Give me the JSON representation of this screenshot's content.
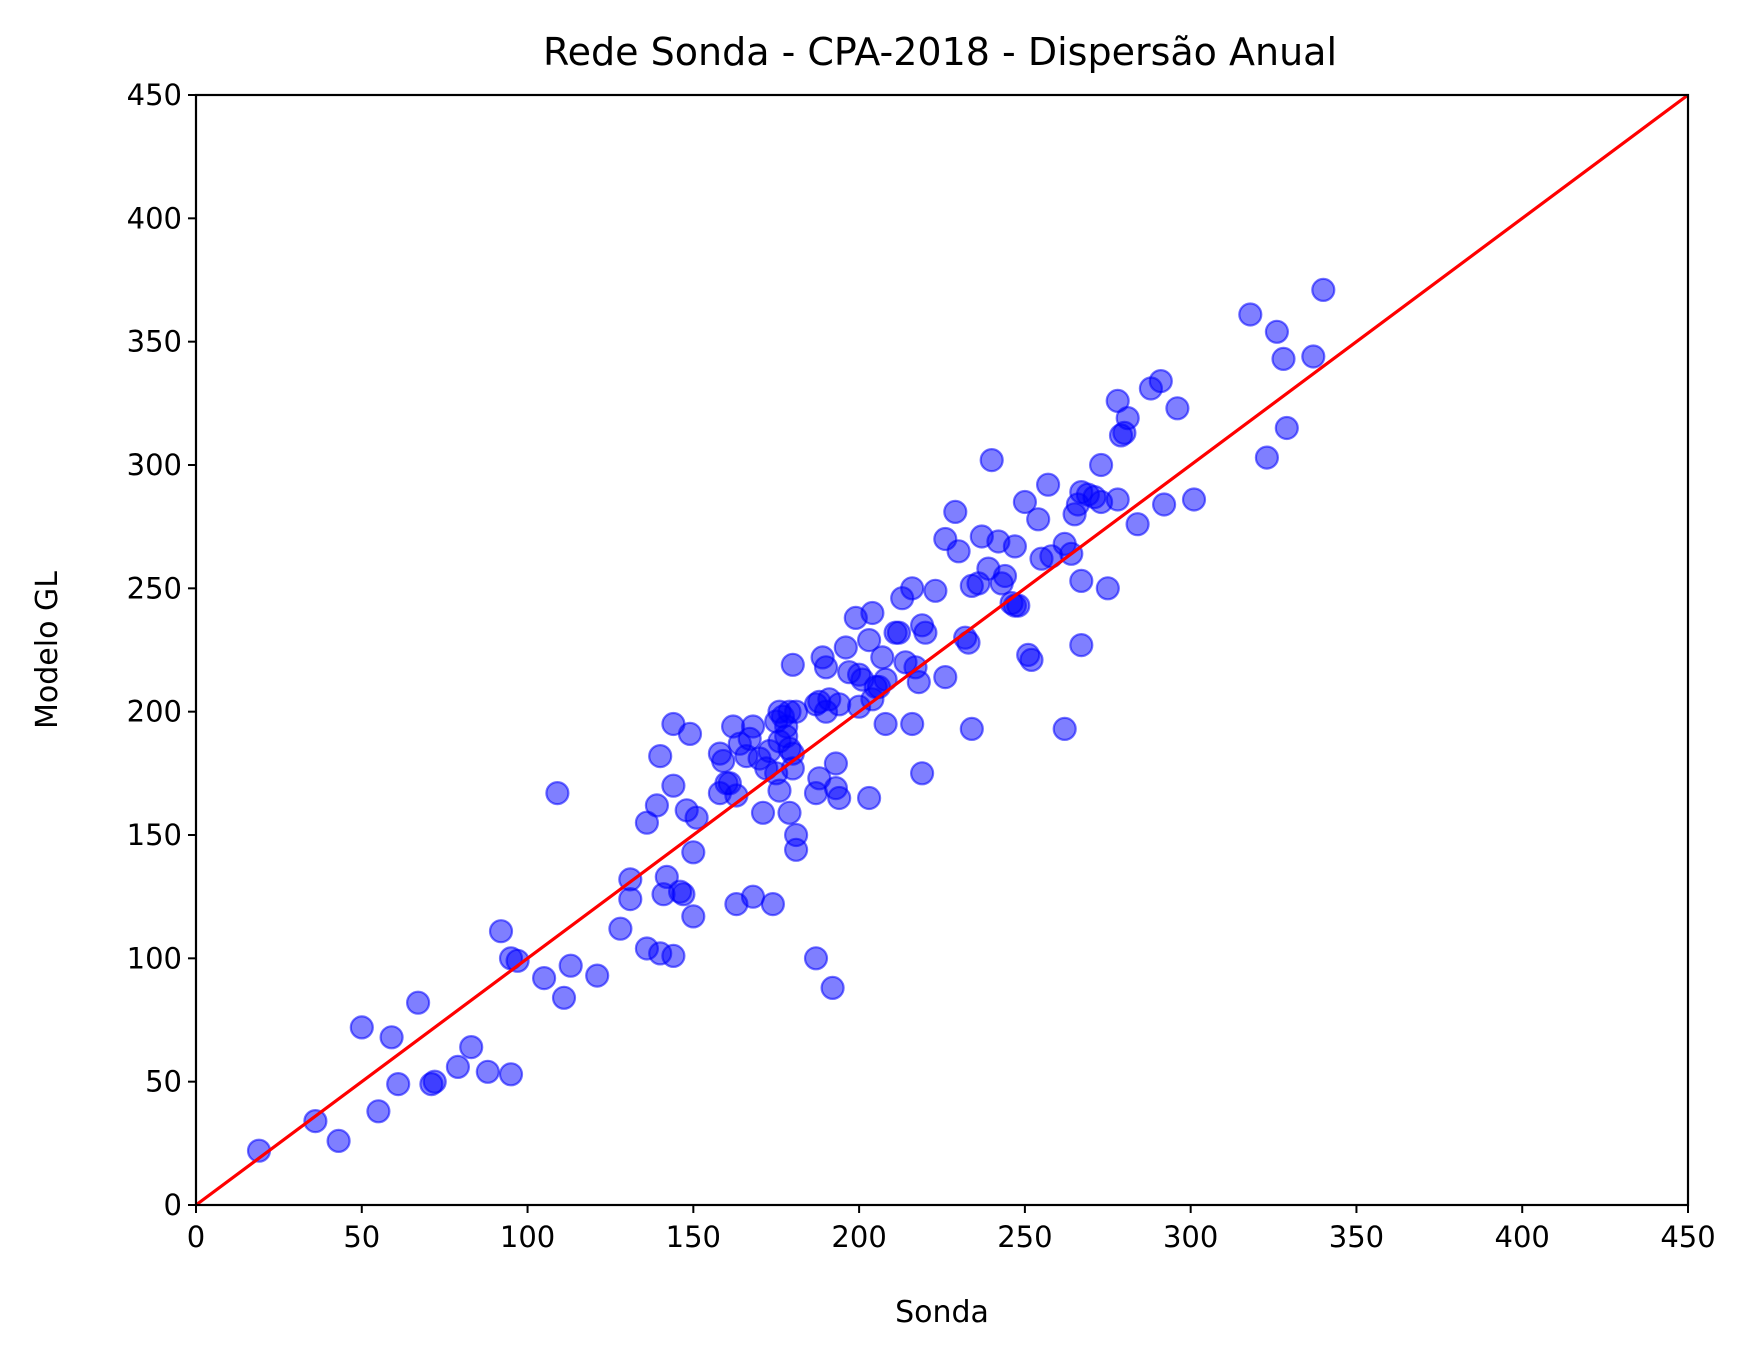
{
  "chart_data": {
    "type": "scatter",
    "title": "Rede Sonda - CPA-2018 - Dispersão Anual",
    "xlabel": "Sonda",
    "ylabel": "Modelo GL",
    "xlim": [
      0,
      450
    ],
    "ylim": [
      0,
      450
    ],
    "xticks": [
      "0",
      "50",
      "100",
      "150",
      "200",
      "250",
      "300",
      "350",
      "400",
      "450"
    ],
    "yticks": [
      "0",
      "50",
      "100",
      "150",
      "200",
      "250",
      "300",
      "350",
      "400",
      "450"
    ],
    "grid": false,
    "legend": "none",
    "point_color": "#0000ff",
    "point_opacity": 0.5,
    "reference_line": {
      "from": [
        0,
        0
      ],
      "to": [
        450,
        450
      ],
      "color": "#ff0000"
    },
    "points": [
      [
        19,
        22
      ],
      [
        36,
        34
      ],
      [
        43,
        26
      ],
      [
        50,
        72
      ],
      [
        55,
        38
      ],
      [
        59,
        68
      ],
      [
        61,
        49
      ],
      [
        67,
        82
      ],
      [
        71,
        49
      ],
      [
        72,
        50
      ],
      [
        79,
        56
      ],
      [
        83,
        64
      ],
      [
        88,
        54
      ],
      [
        92,
        111
      ],
      [
        95,
        53
      ],
      [
        95,
        100
      ],
      [
        97,
        99
      ],
      [
        105,
        92
      ],
      [
        109,
        167
      ],
      [
        111,
        84
      ],
      [
        113,
        97
      ],
      [
        121,
        93
      ],
      [
        128,
        112
      ],
      [
        131,
        124
      ],
      [
        131,
        132
      ],
      [
        136,
        104
      ],
      [
        136,
        155
      ],
      [
        139,
        162
      ],
      [
        140,
        102
      ],
      [
        140,
        182
      ],
      [
        141,
        126
      ],
      [
        142,
        133
      ],
      [
        144,
        101
      ],
      [
        144,
        170
      ],
      [
        144,
        195
      ],
      [
        146,
        127
      ],
      [
        147,
        126
      ],
      [
        148,
        160
      ],
      [
        149,
        191
      ],
      [
        150,
        117
      ],
      [
        150,
        143
      ],
      [
        151,
        157
      ],
      [
        158,
        167
      ],
      [
        158,
        183
      ],
      [
        159,
        180
      ],
      [
        160,
        171
      ],
      [
        161,
        171
      ],
      [
        162,
        194
      ],
      [
        163,
        122
      ],
      [
        163,
        166
      ],
      [
        164,
        187
      ],
      [
        166,
        182
      ],
      [
        167,
        189
      ],
      [
        168,
        125
      ],
      [
        168,
        194
      ],
      [
        170,
        181
      ],
      [
        171,
        159
      ],
      [
        172,
        177
      ],
      [
        173,
        184
      ],
      [
        174,
        122
      ],
      [
        175,
        196
      ],
      [
        175,
        175
      ],
      [
        176,
        168
      ],
      [
        176,
        188
      ],
      [
        176,
        200
      ],
      [
        177,
        198
      ],
      [
        178,
        194
      ],
      [
        178,
        190
      ],
      [
        179,
        159
      ],
      [
        179,
        200
      ],
      [
        179,
        185
      ],
      [
        180,
        219
      ],
      [
        180,
        183
      ],
      [
        180,
        177
      ],
      [
        181,
        150
      ],
      [
        181,
        144
      ],
      [
        181,
        200
      ],
      [
        187,
        167
      ],
      [
        187,
        100
      ],
      [
        187,
        203
      ],
      [
        188,
        204
      ],
      [
        188,
        173
      ],
      [
        189,
        222
      ],
      [
        190,
        200
      ],
      [
        190,
        218
      ],
      [
        191,
        205
      ],
      [
        192,
        88
      ],
      [
        193,
        179
      ],
      [
        193,
        169
      ],
      [
        194,
        165
      ],
      [
        194,
        203
      ],
      [
        196,
        226
      ],
      [
        197,
        216
      ],
      [
        199,
        238
      ],
      [
        200,
        215
      ],
      [
        200,
        202
      ],
      [
        201,
        213
      ],
      [
        203,
        229
      ],
      [
        203,
        165
      ],
      [
        204,
        205
      ],
      [
        204,
        240
      ],
      [
        205,
        210
      ],
      [
        206,
        210
      ],
      [
        207,
        222
      ],
      [
        208,
        195
      ],
      [
        208,
        213
      ],
      [
        211,
        232
      ],
      [
        212,
        232
      ],
      [
        213,
        246
      ],
      [
        214,
        220
      ],
      [
        216,
        250
      ],
      [
        216,
        195
      ],
      [
        217,
        218
      ],
      [
        218,
        212
      ],
      [
        219,
        175
      ],
      [
        219,
        235
      ],
      [
        220,
        232
      ],
      [
        223,
        249
      ],
      [
        226,
        214
      ],
      [
        226,
        270
      ],
      [
        229,
        281
      ],
      [
        230,
        265
      ],
      [
        232,
        230
      ],
      [
        233,
        228
      ],
      [
        234,
        193
      ],
      [
        234,
        251
      ],
      [
        236,
        252
      ],
      [
        237,
        271
      ],
      [
        239,
        258
      ],
      [
        240,
        302
      ],
      [
        242,
        269
      ],
      [
        243,
        252
      ],
      [
        244,
        255
      ],
      [
        246,
        244
      ],
      [
        247,
        243
      ],
      [
        247,
        267
      ],
      [
        248,
        243
      ],
      [
        250,
        285
      ],
      [
        251,
        223
      ],
      [
        252,
        221
      ],
      [
        254,
        278
      ],
      [
        255,
        262
      ],
      [
        257,
        292
      ],
      [
        258,
        263
      ],
      [
        262,
        193
      ],
      [
        262,
        268
      ],
      [
        264,
        264
      ],
      [
        265,
        280
      ],
      [
        266,
        284
      ],
      [
        267,
        289
      ],
      [
        267,
        253
      ],
      [
        267,
        227
      ],
      [
        269,
        288
      ],
      [
        271,
        287
      ],
      [
        273,
        300
      ],
      [
        273,
        285
      ],
      [
        275,
        250
      ],
      [
        278,
        326
      ],
      [
        278,
        286
      ],
      [
        279,
        312
      ],
      [
        280,
        313
      ],
      [
        281,
        319
      ],
      [
        284,
        276
      ],
      [
        288,
        331
      ],
      [
        291,
        334
      ],
      [
        292,
        284
      ],
      [
        296,
        323
      ],
      [
        301,
        286
      ],
      [
        318,
        361
      ],
      [
        323,
        303
      ],
      [
        326,
        354
      ],
      [
        328,
        343
      ],
      [
        329,
        315
      ],
      [
        337,
        344
      ],
      [
        340,
        371
      ]
    ]
  }
}
